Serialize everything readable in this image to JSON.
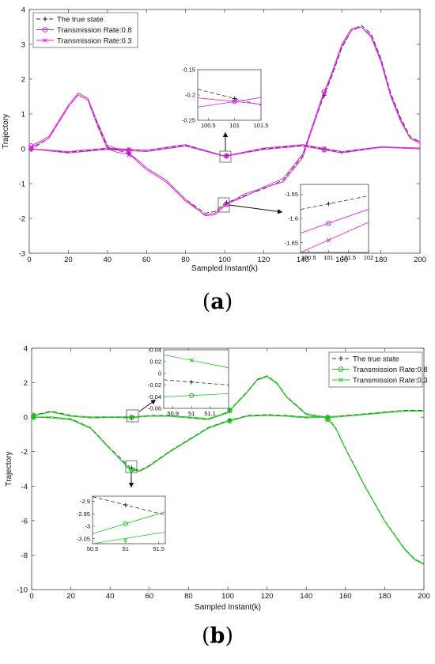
{
  "chart_data": [
    {
      "type": "line",
      "panel": "a",
      "caption_open": "(",
      "caption_letter": "a",
      "caption_close": ")",
      "xlabel": "Sampled Instant(k)",
      "ylabel": "Trajectory",
      "xlim": [
        0,
        200
      ],
      "ylim": [
        -3,
        4
      ],
      "xticks": [
        0,
        20,
        40,
        60,
        80,
        100,
        120,
        140,
        160,
        180,
        200
      ],
      "yticks": [
        -3,
        -2,
        -1,
        0,
        1,
        2,
        3,
        4
      ],
      "grid": false,
      "legend": {
        "placement": "top-left",
        "entries": [
          "The true state",
          "Transmission Rate:0.8",
          "Transmission Rate:0.3"
        ]
      },
      "colors": {
        "true": "#333333",
        "rate08": "#e020e0",
        "rate03": "#e020e0"
      },
      "series": [
        {
          "name": "The true state",
          "trajectories": [
            {
              "x": [
                0,
                10,
                20,
                25,
                30,
                35,
                40,
                45,
                50,
                55,
                60,
                70,
                80,
                90,
                95,
                100,
                110,
                120,
                130,
                140,
                150,
                155,
                160,
                165,
                170,
                175,
                180,
                185,
                190,
                195,
                200
              ],
              "y": [
                -0.05,
                0.3,
                1.2,
                1.55,
                1.4,
                0.7,
                0.05,
                -0.05,
                -0.1,
                -0.3,
                -0.55,
                -0.9,
                -1.45,
                -1.85,
                -1.8,
                -1.57,
                -1.35,
                -1.15,
                -0.9,
                -0.2,
                1.4,
                2.1,
                2.9,
                3.4,
                3.55,
                3.3,
                2.6,
                1.6,
                0.9,
                0.35,
                0.2
              ]
            },
            {
              "x": [
                0,
                20,
                40,
                60,
                80,
                100,
                120,
                140,
                160,
                180,
                200
              ],
              "y": [
                0.0,
                -0.1,
                0.0,
                -0.05,
                0.1,
                -0.21,
                0.0,
                0.1,
                -0.1,
                0.05,
                0.0
              ]
            }
          ]
        },
        {
          "name": "Transmission Rate:0.8",
          "trajectories": [
            {
              "x": [
                0,
                10,
                20,
                25,
                30,
                35,
                40,
                45,
                50,
                55,
                60,
                70,
                80,
                90,
                95,
                100,
                110,
                120,
                130,
                140,
                150,
                155,
                160,
                165,
                170,
                175,
                180,
                185,
                190,
                195,
                200
              ],
              "y": [
                0.05,
                0.35,
                1.25,
                1.6,
                1.45,
                0.75,
                0.1,
                0.0,
                -0.05,
                -0.35,
                -0.6,
                -0.95,
                -1.5,
                -1.9,
                -1.85,
                -1.61,
                -1.38,
                -1.1,
                -0.85,
                -0.15,
                1.5,
                2.2,
                3.0,
                3.45,
                3.5,
                3.2,
                2.5,
                1.5,
                0.8,
                0.3,
                0.15
              ]
            },
            {
              "x": [
                0,
                20,
                40,
                60,
                80,
                100,
                120,
                140,
                160,
                180,
                200
              ],
              "y": [
                0.0,
                -0.12,
                -0.02,
                -0.08,
                0.08,
                -0.22,
                -0.02,
                0.08,
                -0.12,
                0.04,
                0.0
              ]
            }
          ]
        },
        {
          "name": "Transmission Rate:0.3",
          "trajectories": [
            {
              "x": [
                0,
                10,
                20,
                25,
                30,
                35,
                40,
                45,
                50,
                55,
                60,
                70,
                80,
                90,
                95,
                100,
                110,
                120,
                130,
                140,
                150,
                155,
                160,
                165,
                170,
                175,
                180,
                185,
                190,
                195,
                200
              ],
              "y": [
                0.0,
                0.3,
                1.2,
                1.55,
                1.4,
                0.65,
                0.0,
                -0.1,
                -0.15,
                -0.3,
                -0.55,
                -0.9,
                -1.45,
                -1.92,
                -1.9,
                -1.64,
                -1.3,
                -1.12,
                -0.95,
                -0.25,
                1.45,
                2.15,
                2.95,
                3.4,
                3.5,
                3.25,
                2.55,
                1.55,
                0.85,
                0.3,
                0.2
              ]
            },
            {
              "x": [
                0,
                20,
                40,
                60,
                80,
                100,
                120,
                140,
                160,
                180,
                200
              ],
              "y": [
                0.0,
                -0.08,
                0.02,
                -0.04,
                0.12,
                -0.21,
                0.02,
                0.12,
                -0.08,
                0.06,
                0.02
              ]
            }
          ]
        }
      ],
      "insets": [
        {
          "xlim": [
            100.3,
            101.5
          ],
          "ylim": [
            -0.25,
            -0.15
          ],
          "xticks": [
            100.5,
            101,
            101.5
          ],
          "yticks": [
            -0.15,
            -0.2,
            -0.25
          ],
          "points": {
            "true": [
              101,
              -0.207
            ],
            "rate08": [
              101,
              -0.213
            ],
            "rate03": [
              101,
              -0.213
            ]
          }
        },
        {
          "xlim": [
            100.3,
            102
          ],
          "ylim": [
            -1.67,
            -1.53
          ],
          "xticks": [
            100.5,
            101,
            101.5,
            102
          ],
          "yticks": [
            -1.55,
            -1.6,
            -1.65
          ],
          "points": {
            "true": [
              101,
              -1.57
            ],
            "rate08": [
              101,
              -1.61
            ],
            "rate03": [
              101,
              -1.645
            ]
          }
        }
      ]
    },
    {
      "type": "line",
      "panel": "b",
      "caption_open": "(",
      "caption_letter": "b",
      "caption_close": ")",
      "xlabel": "Sampled Instant(k)",
      "ylabel": "Trajectory",
      "xlim": [
        0,
        200
      ],
      "ylim": [
        -10,
        4
      ],
      "xticks": [
        0,
        20,
        40,
        60,
        80,
        100,
        120,
        140,
        160,
        180,
        200
      ],
      "yticks": [
        -10,
        -8,
        -6,
        -4,
        -2,
        0,
        2,
        4
      ],
      "grid": false,
      "legend": {
        "placement": "top-right",
        "entries": [
          "The true state",
          "Transmission Rate:0.8",
          "Transmission Rate:0.3"
        ]
      },
      "colors": {
        "true": "#333333",
        "rate08": "#22cc22",
        "rate03": "#22cc22"
      },
      "series": [
        {
          "name": "The true state",
          "trajectories": [
            {
              "x": [
                0,
                10,
                20,
                30,
                40,
                50,
                60,
                70,
                80,
                90,
                100,
                110,
                115,
                120,
                125,
                130,
                140,
                150,
                160,
                170,
                180,
                190,
                200
              ],
              "y": [
                0.1,
                0.35,
                0.1,
                0.0,
                0.0,
                -0.01,
                0.1,
                0.1,
                0.0,
                -0.1,
                0.3,
                1.5,
                2.2,
                2.4,
                2.0,
                1.2,
                0.2,
                0.0,
                0.1,
                0.2,
                0.3,
                0.4,
                0.4
              ]
            },
            {
              "x": [
                0,
                10,
                20,
                30,
                40,
                50,
                55,
                60,
                70,
                80,
                90,
                100,
                110,
                120,
                130,
                140,
                150,
                155,
                160,
                170,
                180,
                190,
                195,
                200
              ],
              "y": [
                0.0,
                0.0,
                -0.1,
                -0.6,
                -1.8,
                -2.9,
                -3.1,
                -2.8,
                -2.0,
                -1.3,
                -0.6,
                -0.2,
                0.1,
                0.15,
                0.1,
                0.0,
                0.05,
                -0.6,
                -1.8,
                -4.0,
                -6.0,
                -7.6,
                -8.2,
                -8.5
              ]
            }
          ]
        },
        {
          "name": "Transmission Rate:0.8",
          "trajectories": [
            {
              "x": [
                0,
                10,
                20,
                30,
                40,
                50,
                60,
                70,
                80,
                90,
                100,
                110,
                115,
                120,
                125,
                130,
                140,
                150,
                160,
                170,
                180,
                190,
                200
              ],
              "y": [
                0.05,
                0.3,
                0.05,
                -0.05,
                -0.02,
                -0.04,
                0.05,
                0.05,
                -0.05,
                -0.15,
                0.25,
                1.45,
                2.15,
                2.35,
                1.95,
                1.15,
                0.15,
                -0.05,
                0.05,
                0.15,
                0.25,
                0.35,
                0.35
              ]
            },
            {
              "x": [
                0,
                10,
                20,
                30,
                40,
                50,
                55,
                60,
                70,
                80,
                90,
                100,
                110,
                120,
                130,
                140,
                150,
                155,
                160,
                170,
                180,
                190,
                195,
                200
              ],
              "y": [
                0.0,
                -0.05,
                -0.15,
                -0.65,
                -1.85,
                -3.0,
                -3.15,
                -2.85,
                -2.05,
                -1.35,
                -0.65,
                -0.25,
                0.05,
                0.1,
                0.05,
                -0.05,
                0.0,
                -0.65,
                -1.85,
                -4.05,
                -6.05,
                -7.65,
                -8.25,
                -8.55
              ]
            }
          ]
        },
        {
          "name": "Transmission Rate:0.3",
          "trajectories": [
            {
              "x": [
                0,
                10,
                20,
                30,
                40,
                50,
                60,
                70,
                80,
                90,
                100,
                110,
                115,
                120,
                125,
                130,
                140,
                150,
                160,
                170,
                180,
                190,
                200
              ],
              "y": [
                0.08,
                0.32,
                0.08,
                0.02,
                0.02,
                0.02,
                0.08,
                0.08,
                0.02,
                -0.08,
                0.28,
                1.48,
                2.18,
                2.38,
                1.98,
                1.18,
                0.18,
                0.02,
                0.08,
                0.18,
                0.28,
                0.38,
                0.38
              ]
            },
            {
              "x": [
                0,
                10,
                20,
                30,
                40,
                50,
                55,
                60,
                70,
                80,
                90,
                100,
                110,
                120,
                130,
                140,
                150,
                155,
                160,
                170,
                180,
                190,
                195,
                200
              ],
              "y": [
                0.0,
                0.02,
                -0.12,
                -0.62,
                -1.82,
                -3.05,
                -3.12,
                -2.82,
                -2.02,
                -1.32,
                -0.62,
                -0.22,
                0.08,
                0.12,
                0.08,
                0.02,
                0.02,
                -0.62,
                -1.82,
                -4.02,
                -6.02,
                -7.62,
                -8.22,
                -8.52
              ]
            }
          ]
        }
      ],
      "insets": [
        {
          "xlim": [
            50.85,
            51.2
          ],
          "ylim": [
            -0.06,
            0.04
          ],
          "xticks": [
            50.9,
            51,
            51.1
          ],
          "yticks": [
            0.04,
            0.02,
            0,
            -0.02,
            -0.04,
            -0.06
          ],
          "points": {
            "true": [
              51,
              -0.015
            ],
            "rate08": [
              51,
              -0.038
            ],
            "rate03": [
              51,
              0.022
            ]
          }
        },
        {
          "xlim": [
            50.5,
            51.6
          ],
          "ylim": [
            -3.07,
            -2.88
          ],
          "xticks": [
            50.5,
            51,
            51.5
          ],
          "yticks": [
            -2.9,
            -2.95,
            -3,
            -3.05
          ],
          "points": {
            "true": [
              51,
              -2.915
            ],
            "rate08": [
              51,
              -2.99
            ],
            "rate03": [
              51,
              -3.055
            ]
          }
        }
      ]
    }
  ]
}
